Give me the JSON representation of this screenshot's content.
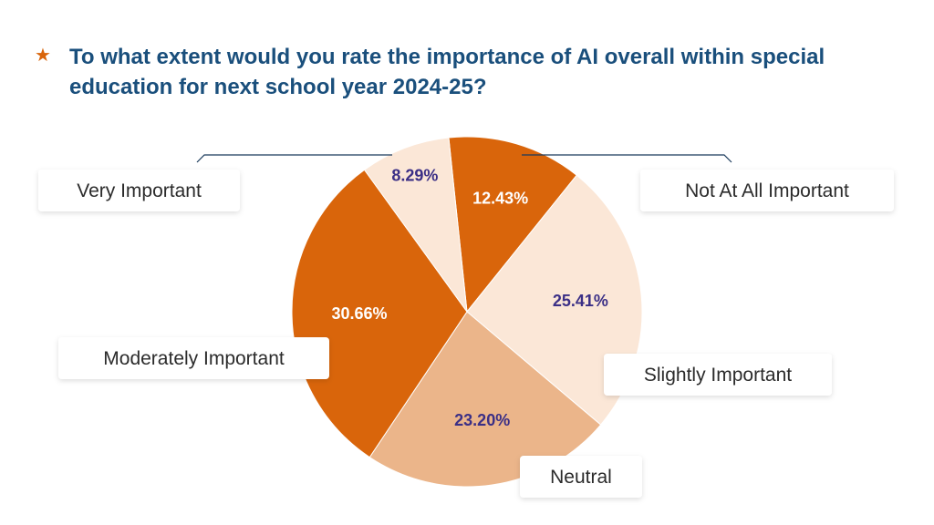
{
  "title": "To what extent would you rate the importance of AI overall within special education for next school year 2024-25?",
  "star_icon": "star-icon",
  "colors": {
    "title": "#1a4f7c",
    "star": "#d9650b",
    "dark_label": "#3b2f86",
    "light_label": "#ffffff"
  },
  "chart_data": {
    "type": "pie",
    "title": "To what extent would you rate the importance of AI overall within special education for next school year 2024-25?",
    "slices": [
      {
        "name": "Not At All Important",
        "value": 12.43,
        "display": "12.43%",
        "color": "#d9650b"
      },
      {
        "name": "Slightly Important",
        "value": 25.41,
        "display": "25.41%",
        "color": "#fbe7d7"
      },
      {
        "name": "Neutral",
        "value": 23.2,
        "display": "23.20%",
        "color": "#ebb58a"
      },
      {
        "name": "Moderately Important",
        "value": 30.66,
        "display": "30.66%",
        "color": "#d9650b"
      },
      {
        "name": "Very Important",
        "value": 8.29,
        "display": "8.29%",
        "color": "#fbe7d7"
      }
    ]
  }
}
